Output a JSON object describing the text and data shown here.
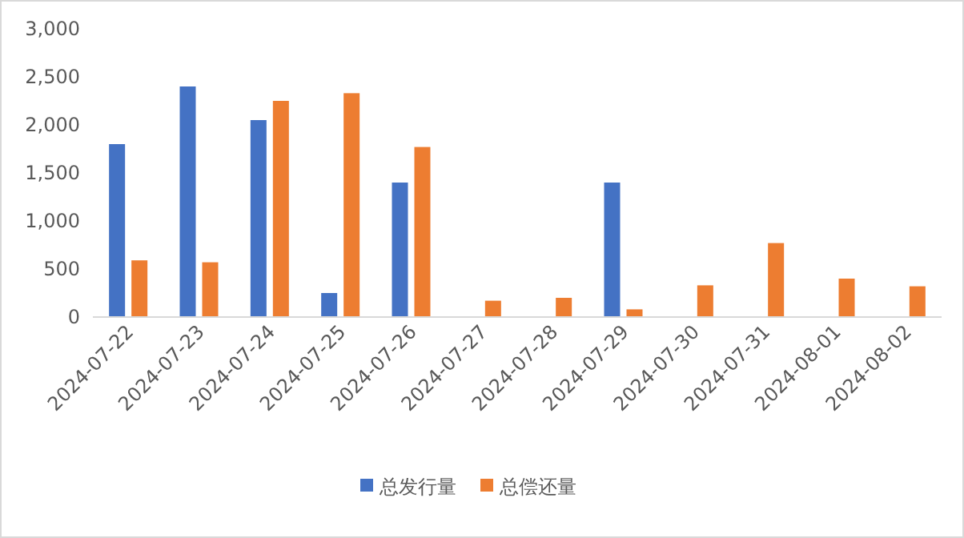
{
  "chart_data": {
    "type": "bar",
    "categories": [
      "2024-07-22",
      "2024-07-23",
      "2024-07-24",
      "2024-07-25",
      "2024-07-26",
      "2024-07-27",
      "2024-07-28",
      "2024-07-29",
      "2024-07-30",
      "2024-07-31",
      "2024-08-01",
      "2024-08-02"
    ],
    "series": [
      {
        "name": "总发行量",
        "color": "#4472c4",
        "values": [
          1800,
          2400,
          2050,
          250,
          1400,
          null,
          null,
          1400,
          null,
          null,
          null,
          null
        ]
      },
      {
        "name": "总偿还量",
        "color": "#ed7d31",
        "values": [
          590,
          570,
          2250,
          2330,
          1770,
          170,
          200,
          80,
          330,
          770,
          400,
          320
        ]
      }
    ],
    "ylim": [
      0,
      3000
    ],
    "yticks": [
      0,
      {
        "value": 500,
        "label": "500"
      },
      {
        "value": 1000,
        "label": "1,000"
      },
      {
        "value": 1500,
        "label": "1,500"
      },
      {
        "value": 2000,
        "label": "2,000"
      },
      {
        "value": 2500,
        "label": "2,500"
      },
      {
        "value": 3000,
        "label": "3,000"
      }
    ],
    "legend": "bottom"
  }
}
